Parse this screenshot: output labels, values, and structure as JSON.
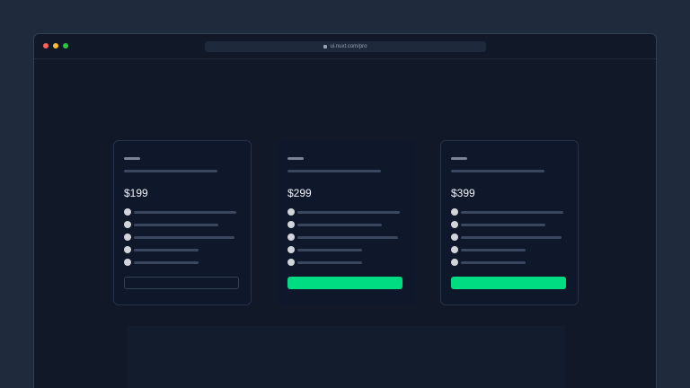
{
  "browser": {
    "url": "ui.nuxt.com/pro",
    "lock_icon": "lock-icon",
    "dots": [
      "#ff5f57",
      "#febc2e",
      "#28c840"
    ]
  },
  "accent": "#00dc82",
  "plans": [
    {
      "price": "$199",
      "highlighted": false,
      "button": "outline"
    },
    {
      "price": "$299",
      "highlighted": true,
      "button": "solid"
    },
    {
      "price": "$399",
      "highlighted": false,
      "button": "solid"
    }
  ]
}
